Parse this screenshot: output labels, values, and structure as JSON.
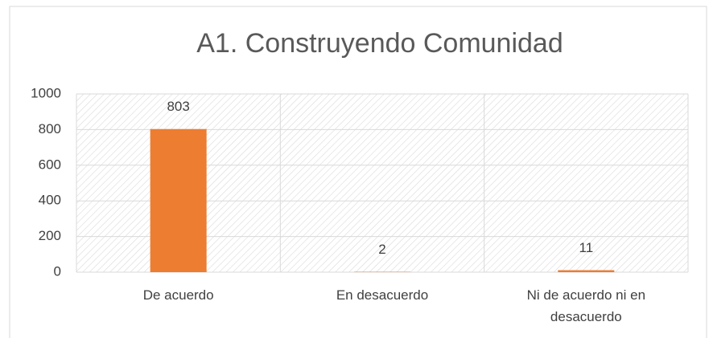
{
  "chart_data": {
    "type": "bar",
    "title": "A1. Construyendo Comunidad",
    "categories": [
      "De acuerdo",
      "En desacuerdo",
      "Ni de acuerdo ni en desacuerdo"
    ],
    "values": [
      803,
      2,
      11
    ],
    "color": "#ed7d31",
    "ylim": [
      0,
      1000
    ],
    "yticks": [
      0,
      200,
      400,
      600,
      800,
      1000
    ],
    "grid": true
  }
}
